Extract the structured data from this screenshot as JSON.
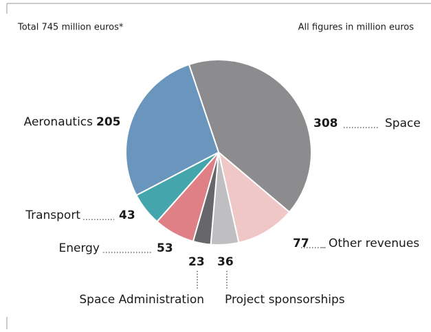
{
  "chart_data": {
    "type": "pie",
    "title": "Total 745 million euros*",
    "subtitle": "All figures in million euros",
    "categories": [
      "Space",
      "Other revenues",
      "Project sponsorships",
      "Space Administration",
      "Energy",
      "Transport",
      "Aeronautics"
    ],
    "values": [
      308,
      77,
      36,
      23,
      53,
      43,
      205
    ],
    "colors": [
      "#8c8c8e",
      "#f0c7c7",
      "#bfbfc1",
      "#67676b",
      "#df7f86",
      "#45a5ad",
      "#6a96be"
    ]
  }
}
